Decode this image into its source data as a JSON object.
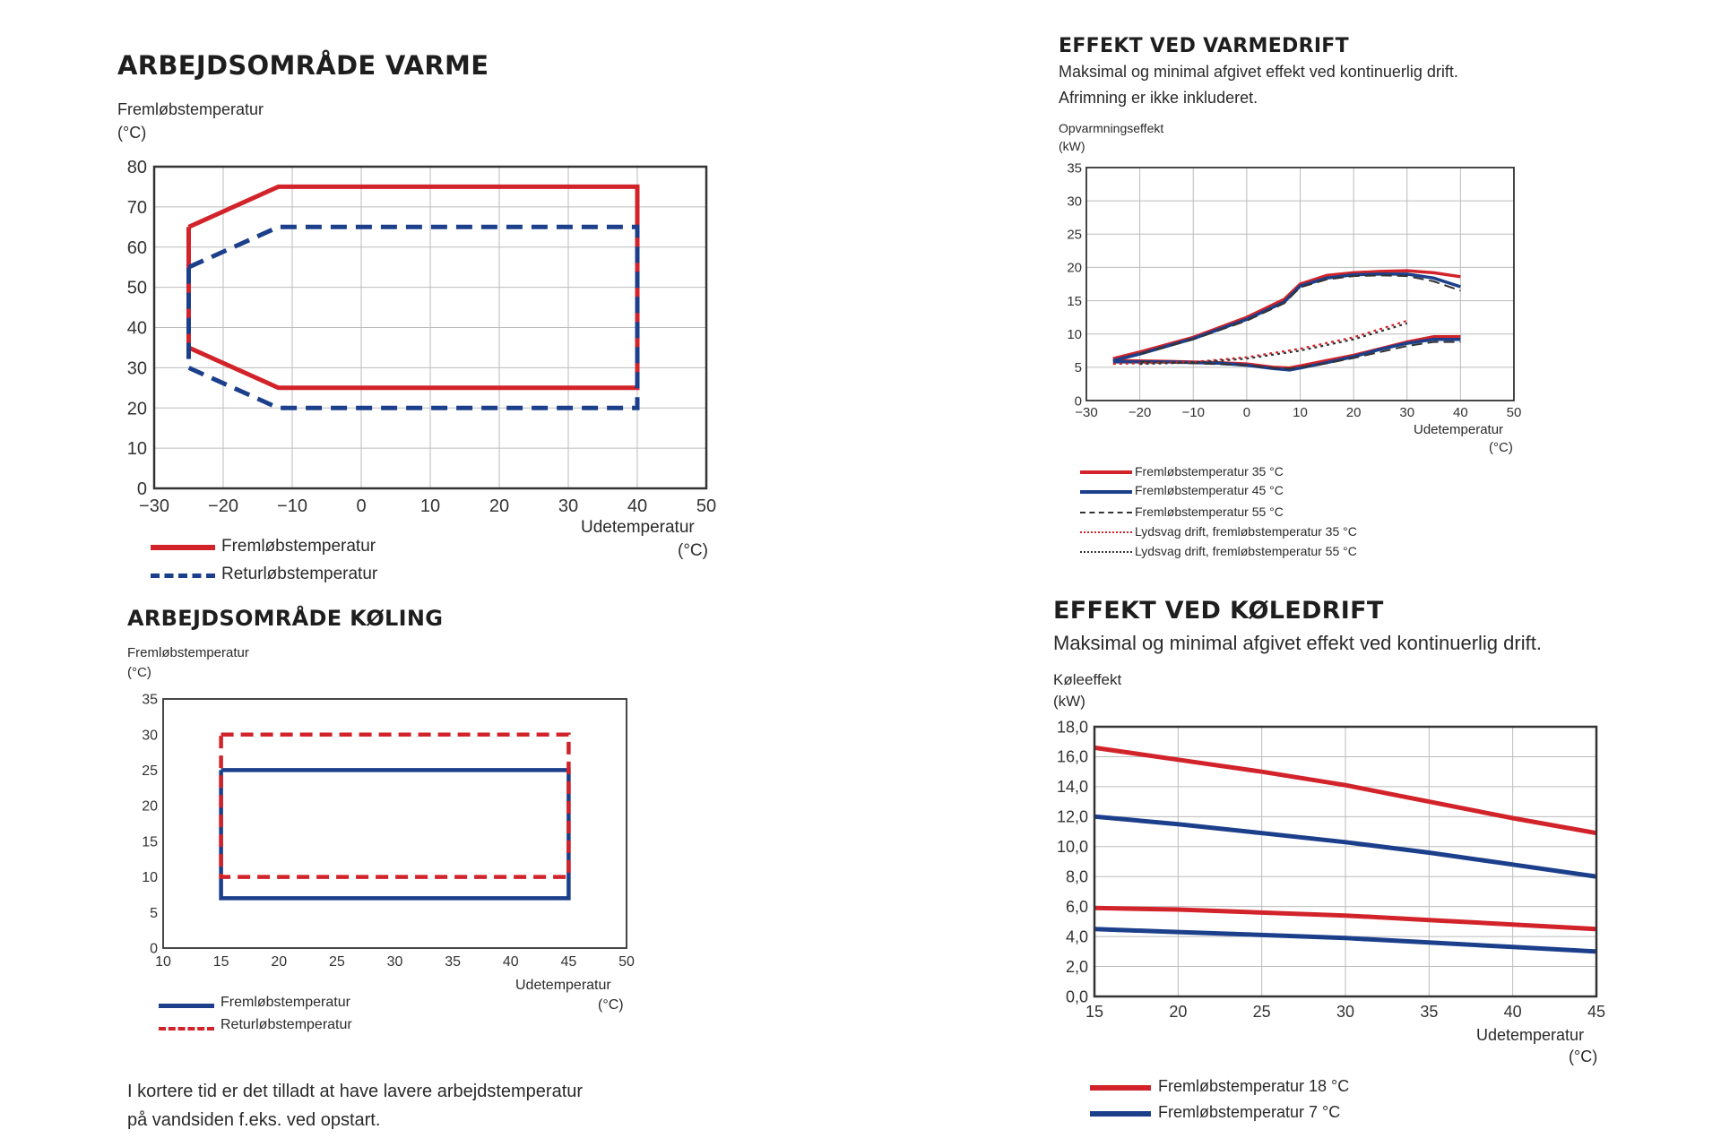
{
  "colors": {
    "red": "#d2232a",
    "blue": "#1b3f8b",
    "dark": "#333333",
    "grid": "#bbbbbb"
  },
  "heating_range": {
    "title": "ARBEJDSOMRÅDE VARME",
    "ylabel": "Fremløbstemperatur",
    "yunit": "(°C)",
    "xlabel": "Udetemperatur",
    "xunit": "(°C)",
    "legend": [
      "Fremløbstemperatur",
      "Returløbstemperatur"
    ]
  },
  "heating_power": {
    "title": "EFFEKT VED VARMEDRIFT",
    "subtitle1": "Maksimal og minimal afgivet effekt ved kontinuerlig drift.",
    "subtitle2": "Afrimning er ikke inkluderet.",
    "ylabel": "Opvarmningseffekt",
    "yunit": "(kW)",
    "xlabel": "Udetemperatur",
    "xunit": "(°C)",
    "legend": [
      "Fremløbstemperatur 35 °C",
      "Fremløbstemperatur 45 °C",
      "Fremløbstemperatur 55 °C",
      "Lydsvag drift, fremløbstemperatur 35 °C",
      "Lydsvag drift, fremløbstemperatur 55 °C"
    ]
  },
  "cooling_range": {
    "title": "ARBEJDSOMRÅDE KØLING",
    "ylabel": "Fremløbstemperatur",
    "yunit": "(°C)",
    "xlabel": "Udetemperatur",
    "xunit": "(°C)",
    "legend": [
      "Fremløbstemperatur",
      "Returløbstemperatur"
    ]
  },
  "cooling_power": {
    "title": "EFFEKT VED KØLEDRIFT",
    "subtitle": "Maksimal og minimal afgivet effekt ved kontinuerlig drift.",
    "ylabel": "Køleeffekt",
    "yunit": "(kW)",
    "xlabel": "Udetemperatur",
    "xunit": "(°C)",
    "legend": [
      "Fremløbstemperatur 18 °C",
      "Fremløbstemperatur 7 °C"
    ]
  },
  "note": {
    "line1": "I kortere tid er det tilladt at have lavere arbejdstemperatur",
    "line2": "på vandsiden f.eks. ved opstart."
  },
  "chart_data": [
    {
      "id": "heating_range",
      "type": "line",
      "title": "ARBEJDSOMRÅDE VARME",
      "xlabel": "Udetemperatur (°C)",
      "ylabel": "Fremløbstemperatur (°C)",
      "xlim": [
        -30,
        50
      ],
      "ylim": [
        0,
        80
      ],
      "xticks": [
        -30,
        -20,
        -10,
        0,
        10,
        20,
        30,
        40,
        50
      ],
      "yticks": [
        0,
        10,
        20,
        30,
        40,
        50,
        60,
        70,
        80
      ],
      "grid": true,
      "series": [
        {
          "name": "Fremløbstemperatur",
          "color": "red",
          "style": "solid",
          "x": [
            -25,
            -12,
            40,
            40,
            -12,
            -25,
            -25
          ],
          "y": [
            65,
            75,
            75,
            25,
            25,
            35,
            65
          ]
        },
        {
          "name": "Returløbstemperatur",
          "color": "blue",
          "style": "dashed",
          "x": [
            -25,
            -12,
            40,
            40,
            -12,
            -25,
            -25
          ],
          "y": [
            55,
            65,
            65,
            20,
            20,
            30,
            55
          ]
        }
      ]
    },
    {
      "id": "heating_power",
      "type": "line",
      "title": "EFFEKT VED VARMEDRIFT",
      "xlabel": "Udetemperatur (°C)",
      "ylabel": "Opvarmningseffekt (kW)",
      "xlim": [
        -30,
        50
      ],
      "ylim": [
        0,
        35
      ],
      "xticks": [
        -30,
        -20,
        -10,
        0,
        10,
        20,
        30,
        40,
        50
      ],
      "yticks": [
        0,
        5,
        10,
        15,
        20,
        25,
        30,
        35
      ],
      "grid": true,
      "series": [
        {
          "name": "Fremløbstemperatur 35 °C",
          "color": "red",
          "style": "solid",
          "x": [
            -25,
            -20,
            -10,
            0,
            7,
            10,
            15,
            20,
            25,
            30,
            35,
            40
          ],
          "y": [
            6.3,
            7.3,
            9.5,
            12.5,
            15.2,
            17.5,
            18.8,
            19.2,
            19.4,
            19.5,
            19.2,
            18.6
          ]
        },
        {
          "name": "Fremløbstemperatur 35 °C min",
          "color": "red",
          "style": "solid",
          "x": [
            -25,
            -15,
            -5,
            0,
            5,
            8,
            10,
            15,
            20,
            25,
            30,
            35,
            40
          ],
          "y": [
            6.0,
            5.9,
            5.7,
            5.5,
            5.0,
            4.9,
            5.2,
            6.0,
            6.8,
            7.8,
            8.8,
            9.6,
            9.6
          ]
        },
        {
          "name": "Fremløbstemperatur 45 °C",
          "color": "blue",
          "style": "solid",
          "x": [
            -25,
            -20,
            -10,
            0,
            7,
            10,
            15,
            20,
            25,
            30,
            35,
            40
          ],
          "y": [
            6.0,
            7.0,
            9.3,
            12.2,
            14.8,
            17.2,
            18.4,
            18.9,
            19.0,
            19.0,
            18.4,
            17.1
          ]
        },
        {
          "name": "Fremløbstemperatur 45 °C min",
          "color": "blue",
          "style": "solid",
          "x": [
            -25,
            -15,
            -5,
            0,
            5,
            8,
            10,
            15,
            20,
            25,
            30,
            35,
            40
          ],
          "y": [
            5.8,
            5.8,
            5.6,
            5.3,
            4.8,
            4.6,
            4.9,
            5.7,
            6.6,
            7.7,
            8.6,
            9.2,
            9.2
          ]
        },
        {
          "name": "Fremløbstemperatur 55 °C",
          "color": "dark",
          "style": "dashed",
          "x": [
            -20,
            -10,
            0,
            7,
            10,
            15,
            20,
            25,
            30,
            35,
            40
          ],
          "y": [
            7.0,
            9.2,
            12.0,
            14.6,
            17.0,
            18.2,
            18.7,
            18.8,
            18.7,
            17.9,
            16.5
          ]
        },
        {
          "name": "Fremløbstemperatur 55 °C min",
          "color": "dark",
          "style": "dashed",
          "x": [
            -20,
            -10,
            0,
            5,
            8,
            10,
            15,
            20,
            25,
            30,
            35,
            40
          ],
          "y": [
            5.8,
            5.6,
            5.3,
            4.9,
            4.8,
            5.0,
            5.6,
            6.4,
            7.3,
            8.2,
            8.8,
            8.8
          ]
        },
        {
          "name": "Lydsvag drift, fremløbstemperatur 35 °C",
          "color": "red",
          "style": "dotted",
          "x": [
            -25,
            -20,
            -10,
            0,
            10,
            20,
            30
          ],
          "y": [
            5.5,
            5.6,
            5.8,
            6.5,
            7.8,
            9.5,
            12.0
          ]
        },
        {
          "name": "Lydsvag drift, fremløbstemperatur 55 °C",
          "color": "dark",
          "style": "dotted",
          "x": [
            -20,
            -10,
            0,
            10,
            20,
            30
          ],
          "y": [
            5.5,
            5.7,
            6.3,
            7.5,
            9.2,
            11.6
          ]
        }
      ]
    },
    {
      "id": "cooling_range",
      "type": "line",
      "title": "ARBEJDSOMRÅDE KØLING",
      "xlabel": "Udetemperatur (°C)",
      "ylabel": "Fremløbstemperatur (°C)",
      "xlim": [
        10,
        50
      ],
      "ylim": [
        0,
        35
      ],
      "xticks": [
        10,
        15,
        20,
        25,
        30,
        35,
        40,
        45,
        50
      ],
      "yticks": [
        0,
        5,
        10,
        15,
        20,
        25,
        30,
        35
      ],
      "grid": false,
      "series": [
        {
          "name": "Fremløbstemperatur",
          "color": "blue",
          "style": "solid",
          "x": [
            15,
            45,
            45,
            15,
            15
          ],
          "y": [
            25,
            25,
            7,
            7,
            25
          ]
        },
        {
          "name": "Returløbstemperatur",
          "color": "red",
          "style": "dashed",
          "x": [
            15,
            45,
            45,
            15,
            15
          ],
          "y": [
            30,
            30,
            10,
            10,
            30
          ]
        }
      ]
    },
    {
      "id": "cooling_power",
      "type": "line",
      "title": "EFFEKT VED KØLEDRIFT",
      "xlabel": "Udetemperatur (°C)",
      "ylabel": "Køleeffekt (kW)",
      "xlim": [
        15,
        45
      ],
      "ylim": [
        0,
        18
      ],
      "xticks": [
        15,
        20,
        25,
        30,
        35,
        40,
        45
      ],
      "yticks": [
        0,
        2,
        4,
        6,
        8,
        10,
        12,
        14,
        16,
        18
      ],
      "ytick_labels": [
        "0,0",
        "2,0",
        "4,0",
        "6,0",
        "8,0",
        "10,0",
        "12,0",
        "14,0",
        "16,0",
        "18,0"
      ],
      "grid": true,
      "series": [
        {
          "name": "Fremløbstemperatur 18 °C",
          "color": "red",
          "style": "solid",
          "x": [
            15,
            20,
            25,
            30,
            35,
            40,
            45
          ],
          "y": [
            16.6,
            15.8,
            15.0,
            14.1,
            13.0,
            11.9,
            10.9
          ]
        },
        {
          "name": "Fremløbstemperatur 18 °C min",
          "color": "red",
          "style": "solid",
          "x": [
            15,
            20,
            25,
            30,
            35,
            40,
            45
          ],
          "y": [
            5.9,
            5.8,
            5.6,
            5.4,
            5.1,
            4.8,
            4.5
          ]
        },
        {
          "name": "Fremløbstemperatur 7 °C",
          "color": "blue",
          "style": "solid",
          "x": [
            15,
            20,
            25,
            30,
            35,
            40,
            45
          ],
          "y": [
            12.0,
            11.5,
            10.9,
            10.3,
            9.6,
            8.8,
            8.0
          ]
        },
        {
          "name": "Fremløbstemperatur 7 °C min",
          "color": "blue",
          "style": "solid",
          "x": [
            15,
            20,
            25,
            30,
            35,
            40,
            45
          ],
          "y": [
            4.5,
            4.3,
            4.1,
            3.9,
            3.6,
            3.3,
            3.0
          ]
        }
      ]
    }
  ]
}
